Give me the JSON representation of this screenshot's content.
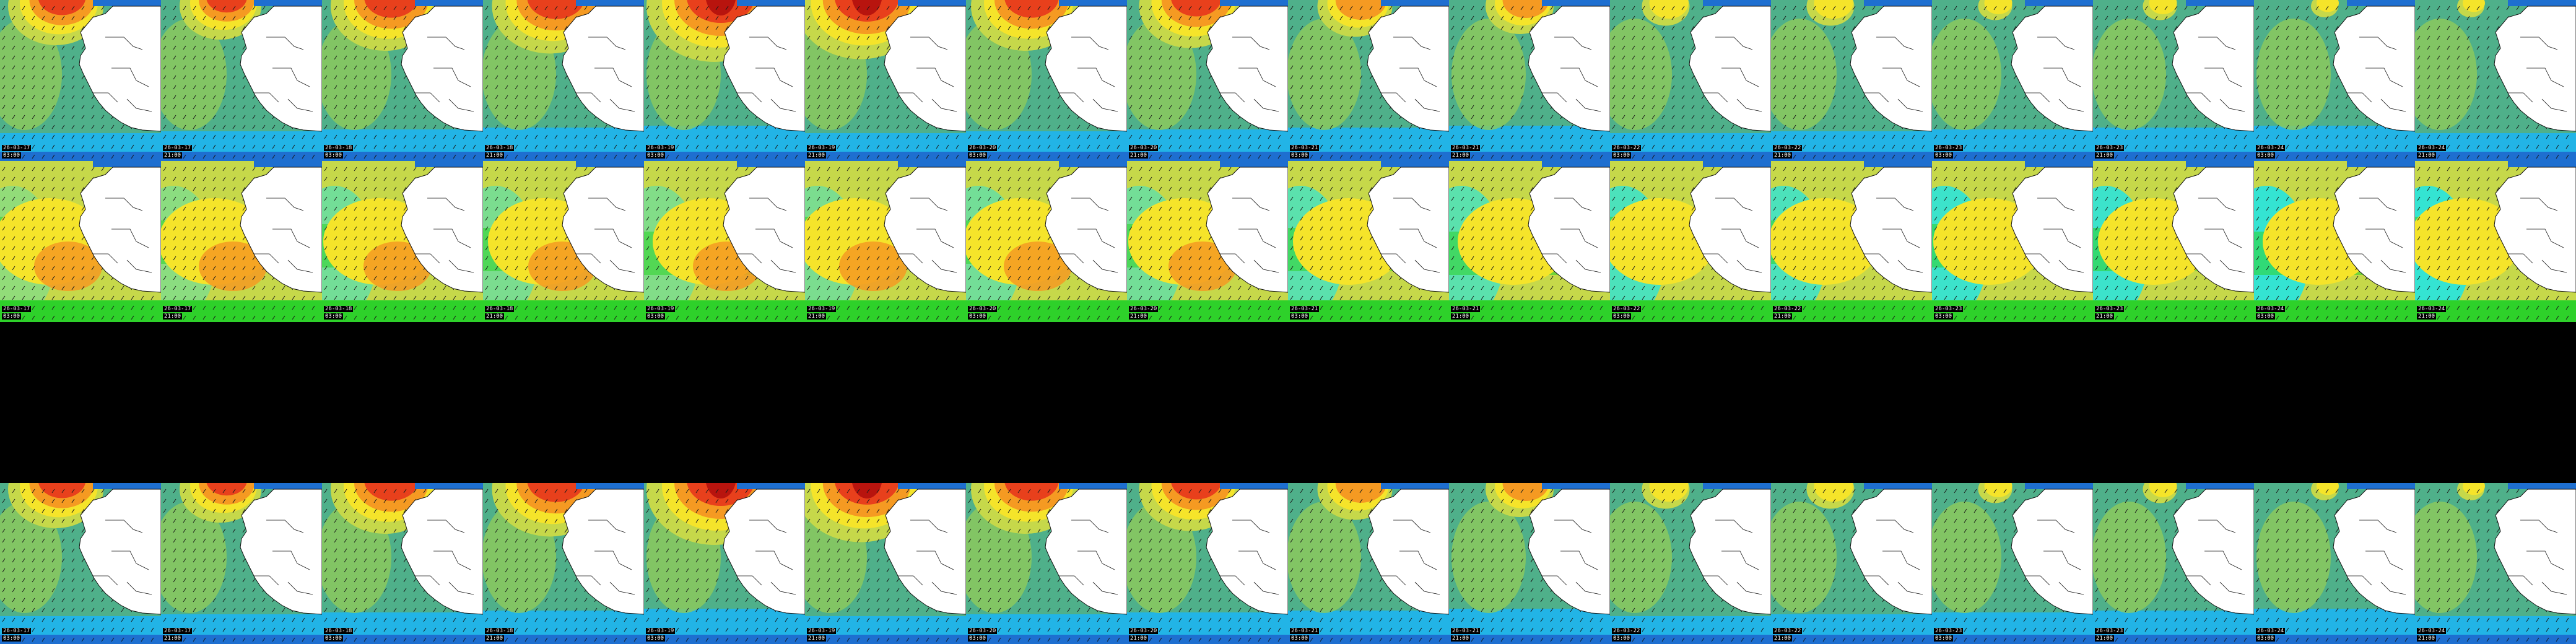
{
  "colors": {
    "ocean_deep": "#1e6fd0",
    "ocean": "#22b4e6",
    "sea_green": "#4fb08a",
    "mid_green": "#8fca5a",
    "yellow_green": "#c6d84a",
    "yellow": "#f5e42a",
    "orange": "#f59a22",
    "red": "#e8401c",
    "dark_red": "#b8140e",
    "cyan": "#16e6ee",
    "bright_green": "#2ed12a",
    "land": "#ffffff",
    "border": "#111111"
  },
  "rows": [
    {
      "name": "row-1",
      "palette": "anomaly",
      "frames": [
        {
          "date": "26-03-17",
          "time": "03:00",
          "intensity": 0.7
        },
        {
          "date": "26-03-17",
          "time": "21:00",
          "intensity": 0.6
        },
        {
          "date": "26-03-18",
          "time": "03:00",
          "intensity": 0.8
        },
        {
          "date": "26-03-18",
          "time": "21:00",
          "intensity": 0.85
        },
        {
          "date": "26-03-19",
          "time": "03:00",
          "intensity": 1.0
        },
        {
          "date": "26-03-19",
          "time": "21:00",
          "intensity": 0.95
        },
        {
          "date": "26-03-20",
          "time": "03:00",
          "intensity": 0.8
        },
        {
          "date": "26-03-20",
          "time": "21:00",
          "intensity": 0.75
        },
        {
          "date": "26-03-21",
          "time": "03:00",
          "intensity": 0.55
        },
        {
          "date": "26-03-21",
          "time": "21:00",
          "intensity": 0.5
        },
        {
          "date": "26-03-22",
          "time": "03:00",
          "intensity": 0.35
        },
        {
          "date": "26-03-22",
          "time": "21:00",
          "intensity": 0.35
        },
        {
          "date": "26-03-23",
          "time": "03:00",
          "intensity": 0.25
        },
        {
          "date": "26-03-23",
          "time": "21:00",
          "intensity": 0.25
        },
        {
          "date": "26-03-24",
          "time": "03:00",
          "intensity": 0.2
        },
        {
          "date": "26-03-24",
          "time": "21:00",
          "intensity": 0.2
        }
      ]
    },
    {
      "name": "row-2",
      "palette": "speed",
      "frames": [
        {
          "date": "26-03-17",
          "time": "03:00",
          "intensity": 0.9
        },
        {
          "date": "26-03-17",
          "time": "21:00",
          "intensity": 0.85
        },
        {
          "date": "26-03-18",
          "time": "03:00",
          "intensity": 0.7
        },
        {
          "date": "26-03-18",
          "time": "21:00",
          "intensity": 0.75
        },
        {
          "date": "26-03-19",
          "time": "03:00",
          "intensity": 0.8
        },
        {
          "date": "26-03-19",
          "time": "21:00",
          "intensity": 0.75
        },
        {
          "date": "26-03-20",
          "time": "03:00",
          "intensity": 0.7
        },
        {
          "date": "26-03-20",
          "time": "21:00",
          "intensity": 0.7
        },
        {
          "date": "26-03-21",
          "time": "03:00",
          "intensity": 0.55
        },
        {
          "date": "26-03-21",
          "time": "21:00",
          "intensity": 0.55
        },
        {
          "date": "26-03-22",
          "time": "03:00",
          "intensity": 0.45
        },
        {
          "date": "26-03-22",
          "time": "21:00",
          "intensity": 0.45
        },
        {
          "date": "26-03-23",
          "time": "03:00",
          "intensity": 0.35
        },
        {
          "date": "26-03-23",
          "time": "21:00",
          "intensity": 0.35
        },
        {
          "date": "26-03-24",
          "time": "03:00",
          "intensity": 0.3
        },
        {
          "date": "26-03-24",
          "time": "21:00",
          "intensity": 0.3
        }
      ]
    },
    {
      "name": "row-4",
      "palette": "anomaly",
      "frames": [
        {
          "date": "26-03-17",
          "time": "03:00",
          "intensity": 0.7
        },
        {
          "date": "26-03-17",
          "time": "21:00",
          "intensity": 0.6
        },
        {
          "date": "26-03-18",
          "time": "03:00",
          "intensity": 0.8
        },
        {
          "date": "26-03-18",
          "time": "21:00",
          "intensity": 0.85
        },
        {
          "date": "26-03-19",
          "time": "03:00",
          "intensity": 1.0
        },
        {
          "date": "26-03-19",
          "time": "21:00",
          "intensity": 0.95
        },
        {
          "date": "26-03-20",
          "time": "03:00",
          "intensity": 0.8
        },
        {
          "date": "26-03-20",
          "time": "21:00",
          "intensity": 0.75
        },
        {
          "date": "26-03-21",
          "time": "03:00",
          "intensity": 0.55
        },
        {
          "date": "26-03-21",
          "time": "21:00",
          "intensity": 0.5
        },
        {
          "date": "26-03-22",
          "time": "03:00",
          "intensity": 0.35
        },
        {
          "date": "26-03-22",
          "time": "21:00",
          "intensity": 0.35
        },
        {
          "date": "26-03-23",
          "time": "03:00",
          "intensity": 0.25
        },
        {
          "date": "26-03-23",
          "time": "21:00",
          "intensity": 0.25
        },
        {
          "date": "26-03-24",
          "time": "03:00",
          "intensity": 0.2
        },
        {
          "date": "26-03-24",
          "time": "21:00",
          "intensity": 0.2
        }
      ]
    }
  ]
}
